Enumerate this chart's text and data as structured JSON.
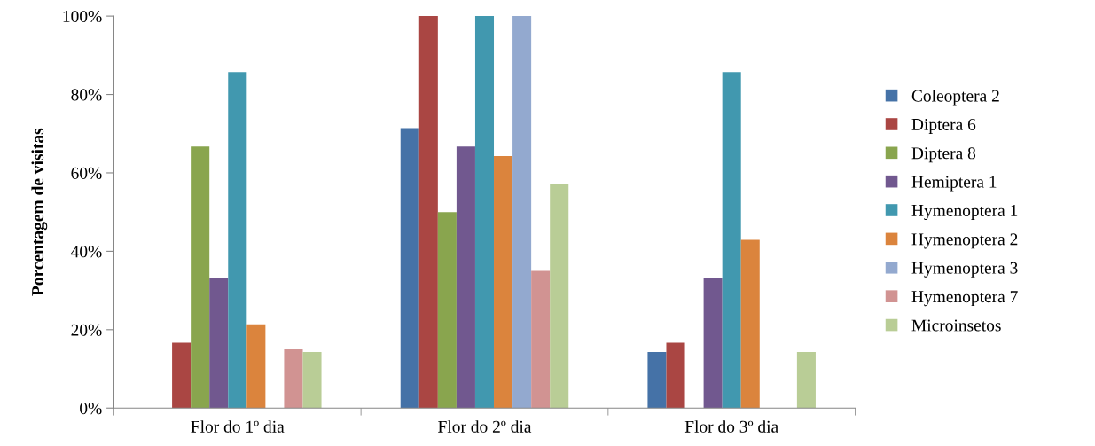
{
  "chart_data": {
    "type": "bar",
    "ylabel": "Porcentagem de visitas",
    "categories": [
      "Flor do 1º dia",
      "Flor do 2º dia",
      "Flor do 3º dia"
    ],
    "series": [
      {
        "name": "Coleoptera 2",
        "color": "#4572a7",
        "values": [
          0,
          71.4,
          14.3
        ]
      },
      {
        "name": "Diptera 6",
        "color": "#aa4643",
        "values": [
          16.7,
          100,
          16.7
        ]
      },
      {
        "name": "Diptera 8",
        "color": "#89a54e",
        "values": [
          66.7,
          50,
          0
        ]
      },
      {
        "name": "Hemiptera 1",
        "color": "#71588f",
        "values": [
          33.3,
          66.7,
          33.3
        ]
      },
      {
        "name": "Hymenoptera 1",
        "color": "#4198af",
        "values": [
          85.7,
          100,
          85.7
        ]
      },
      {
        "name": "Hymenoptera 2",
        "color": "#db843d",
        "values": [
          21.4,
          64.3,
          42.9
        ]
      },
      {
        "name": "Hymenoptera 3",
        "color": "#93a9cf",
        "values": [
          0,
          100,
          0
        ]
      },
      {
        "name": "Hymenoptera 7",
        "color": "#d19392",
        "values": [
          15,
          35,
          0
        ]
      },
      {
        "name": "Microinsetos",
        "color": "#b9cd96",
        "values": [
          14.3,
          57.1,
          14.3
        ]
      }
    ],
    "ylim": [
      0,
      100
    ],
    "yticks": [
      {
        "value": 0,
        "label": "0%"
      },
      {
        "value": 20,
        "label": "20%"
      },
      {
        "value": 40,
        "label": "40%"
      },
      {
        "value": 60,
        "label": "60%"
      },
      {
        "value": 80,
        "label": "80%"
      },
      {
        "value": 100,
        "label": "100%"
      }
    ],
    "grid": false,
    "legend": "right"
  }
}
